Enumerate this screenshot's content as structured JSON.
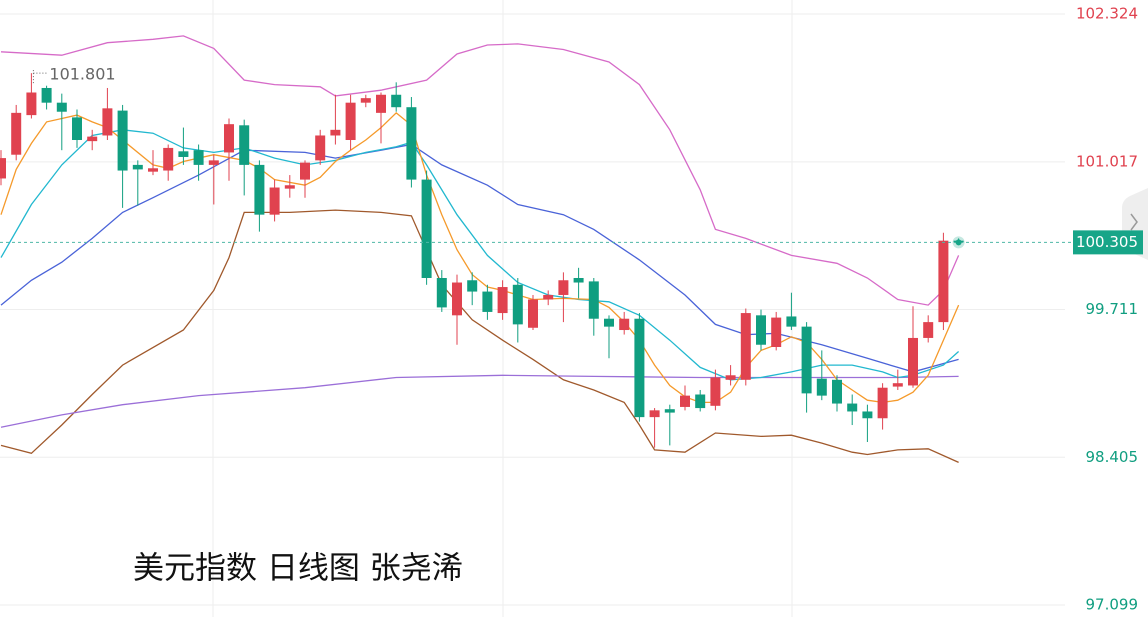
{
  "chart_data": {
    "type": "candlestick",
    "title": "美元指数 日线图 张尧浠",
    "ylim": [
      97.099,
      102.324
    ],
    "yticks": [
      97.099,
      98.405,
      99.711,
      101.017,
      102.324
    ],
    "up_color": "#e0424f",
    "down_color": "#109e80",
    "grid": true,
    "last_price": 100.305,
    "high_label": 101.801,
    "open": [
      100.87,
      101.08,
      101.43,
      101.67,
      101.54,
      101.41,
      101.2,
      101.25,
      101.47,
      100.99,
      100.93,
      100.94,
      101.11,
      101.12,
      100.99,
      101.1,
      101.34,
      100.99,
      100.55,
      100.78,
      100.86,
      101.03,
      101.25,
      101.21,
      101.54,
      101.45,
      101.61,
      101.5,
      100.86,
      99.99,
      99.66,
      99.97,
      99.87,
      99.68,
      99.93,
      99.55,
      99.8,
      99.84,
      99.99,
      99.96,
      99.63,
      99.53,
      99.63,
      98.76,
      98.83,
      98.85,
      98.96,
      98.86,
      99.09,
      99.09,
      99.66,
      99.38,
      99.65,
      99.56,
      99.1,
      99.09,
      98.88,
      98.81,
      98.75,
      99.03,
      99.04,
      99.46,
      99.6,
      100.32
    ],
    "high": [
      101.12,
      101.52,
      101.801,
      101.69,
      101.62,
      101.48,
      101.3,
      101.67,
      101.52,
      101.03,
      101.12,
      101.17,
      101.32,
      101.17,
      101.08,
      101.4,
      101.39,
      101.03,
      100.86,
      100.9,
      101.03,
      101.3,
      101.61,
      101.61,
      101.61,
      101.63,
      101.72,
      101.59,
      100.94,
      100.06,
      100.02,
      100.04,
      99.93,
      99.97,
      99.99,
      99.84,
      99.88,
      100.04,
      100.08,
      99.99,
      99.66,
      99.69,
      99.68,
      98.84,
      98.87,
      99.04,
      99.0,
      99.18,
      99.22,
      99.72,
      99.71,
      99.69,
      99.86,
      99.6,
      99.35,
      99.13,
      98.96,
      98.87,
      99.06,
      99.18,
      99.74,
      99.66,
      100.39,
      100.34
    ],
    "low": [
      100.81,
      101.03,
      101.4,
      101.48,
      101.12,
      101.14,
      101.12,
      101.21,
      100.61,
      100.63,
      100.9,
      100.85,
      100.99,
      100.85,
      100.64,
      100.85,
      100.72,
      100.4,
      100.49,
      100.7,
      100.7,
      100.99,
      101.17,
      101.12,
      101.5,
      101.18,
      101.46,
      100.79,
      99.93,
      99.69,
      99.4,
      99.75,
      99.62,
      99.62,
      99.42,
      99.53,
      99.75,
      99.6,
      99.81,
      99.48,
      99.28,
      99.49,
      98.72,
      98.49,
      98.51,
      98.82,
      98.81,
      98.82,
      99.04,
      99.04,
      99.35,
      99.35,
      99.53,
      98.8,
      98.91,
      98.81,
      98.69,
      98.54,
      98.65,
      99.0,
      99.02,
      99.42,
      99.53,
      100.28
    ],
    "close": [
      101.05,
      101.45,
      101.63,
      101.54,
      101.46,
      101.21,
      101.24,
      101.49,
      100.94,
      100.95,
      100.96,
      101.14,
      101.06,
      100.99,
      101.03,
      101.35,
      100.99,
      100.55,
      100.79,
      100.81,
      101.01,
      101.25,
      101.3,
      101.54,
      101.58,
      101.61,
      101.5,
      100.86,
      99.99,
      99.73,
      99.95,
      99.87,
      99.69,
      99.91,
      99.58,
      99.8,
      99.84,
      99.97,
      99.95,
      99.63,
      99.56,
      99.63,
      98.76,
      98.82,
      98.8,
      98.95,
      98.84,
      99.11,
      99.13,
      99.68,
      99.4,
      99.64,
      99.56,
      98.97,
      98.95,
      98.88,
      98.81,
      98.75,
      99.02,
      99.06,
      99.46,
      99.6,
      100.32,
      100.305
    ],
    "overlays": [
      {
        "color": "#d66bc8",
        "x": [
          0,
          4,
          7,
          10,
          12,
          14,
          16,
          18,
          21,
          22,
          25,
          28,
          30,
          32,
          34,
          37,
          40,
          42,
          44,
          46,
          47,
          49,
          52,
          55,
          57,
          59,
          61,
          62,
          63
        ],
        "values": [
          101.99,
          101.96,
          102.07,
          102.1,
          102.13,
          102.02,
          101.74,
          101.7,
          101.68,
          101.6,
          101.65,
          101.74,
          101.97,
          102.05,
          102.06,
          102.01,
          101.9,
          101.7,
          101.3,
          100.77,
          100.42,
          100.34,
          100.19,
          100.12,
          99.99,
          99.8,
          99.75,
          99.88,
          100.19
        ]
      },
      {
        "color": "#a0592c",
        "x": [
          0,
          2,
          4,
          6,
          8,
          12,
          14,
          15,
          16,
          19,
          22,
          25,
          27,
          29,
          31,
          33,
          35,
          37,
          39,
          41,
          42,
          43,
          45,
          47,
          50,
          52,
          54,
          56,
          57,
          59,
          61,
          63
        ],
        "values": [
          98.51,
          98.44,
          98.69,
          98.96,
          99.22,
          99.53,
          99.88,
          100.17,
          100.57,
          100.57,
          100.59,
          100.57,
          100.54,
          99.93,
          99.62,
          99.44,
          99.27,
          99.09,
          99.0,
          98.89,
          98.69,
          98.47,
          98.45,
          98.62,
          98.59,
          98.6,
          98.53,
          98.45,
          98.43,
          98.47,
          98.48,
          98.36
        ]
      },
      {
        "color": "#9b6fd8",
        "x": [
          0,
          4,
          8,
          13,
          20,
          26,
          33,
          39,
          46,
          53,
          59,
          63
        ],
        "values": [
          98.67,
          98.78,
          98.87,
          98.95,
          99.02,
          99.11,
          99.13,
          99.12,
          99.11,
          99.11,
          99.11,
          99.12
        ]
      },
      {
        "color": "#4a63d8",
        "x": [
          0,
          2,
          4,
          6,
          8,
          10,
          13,
          16,
          20,
          22,
          25,
          27,
          29,
          32,
          34,
          37,
          39,
          42,
          45,
          47,
          49,
          51,
          54,
          57,
          59,
          60,
          63
        ],
        "values": [
          99.75,
          99.97,
          100.13,
          100.34,
          100.57,
          100.7,
          100.9,
          101.12,
          101.1,
          101.05,
          101.12,
          101.17,
          100.99,
          100.81,
          100.64,
          100.55,
          100.42,
          100.15,
          99.84,
          99.58,
          99.49,
          99.5,
          99.4,
          99.28,
          99.2,
          99.16,
          99.27
        ]
      },
      {
        "color": "#22b8cf",
        "x": [
          0,
          2,
          4,
          6,
          8,
          10,
          12,
          14,
          16,
          18,
          20,
          22,
          24,
          26,
          27,
          28,
          30,
          32,
          34,
          36,
          38,
          40,
          42,
          44,
          46,
          48,
          50,
          52,
          54,
          56,
          58,
          59,
          60,
          62,
          63
        ],
        "values": [
          100.17,
          100.64,
          100.99,
          101.25,
          101.3,
          101.27,
          101.14,
          101.1,
          101.14,
          101.05,
          100.99,
          101.03,
          101.1,
          101.15,
          101.19,
          100.99,
          100.55,
          100.19,
          99.95,
          99.84,
          99.8,
          99.78,
          99.66,
          99.44,
          99.2,
          99.09,
          99.11,
          99.16,
          99.22,
          99.22,
          99.16,
          99.11,
          99.13,
          99.22,
          99.34
        ]
      },
      {
        "color": "#f59a2b",
        "x": [
          0,
          1,
          2,
          3,
          5,
          6,
          7,
          8,
          10,
          11,
          12,
          14,
          16,
          17,
          18,
          20,
          21,
          22,
          23,
          24,
          25,
          26,
          27,
          28,
          29,
          30,
          31,
          32,
          33,
          35,
          37,
          39,
          40,
          41,
          42,
          43,
          44,
          45,
          46,
          47,
          48,
          49,
          50,
          51,
          52,
          53,
          54,
          55,
          56,
          57,
          58,
          59,
          60,
          61,
          62,
          63
        ],
        "values": [
          100.55,
          100.95,
          101.18,
          101.37,
          101.43,
          101.37,
          101.32,
          101.21,
          100.99,
          100.96,
          101.02,
          101.08,
          101.03,
          100.96,
          100.86,
          100.81,
          100.88,
          101.02,
          101.12,
          101.21,
          101.32,
          101.45,
          101.34,
          100.9,
          100.55,
          100.24,
          100.02,
          99.91,
          99.88,
          99.8,
          99.81,
          99.8,
          99.73,
          99.6,
          99.44,
          99.22,
          99.04,
          98.94,
          98.89,
          98.89,
          98.98,
          99.2,
          99.35,
          99.4,
          99.47,
          99.42,
          99.27,
          99.09,
          99.0,
          98.91,
          98.89,
          98.91,
          98.98,
          99.13,
          99.44,
          99.75
        ]
      }
    ]
  }
}
